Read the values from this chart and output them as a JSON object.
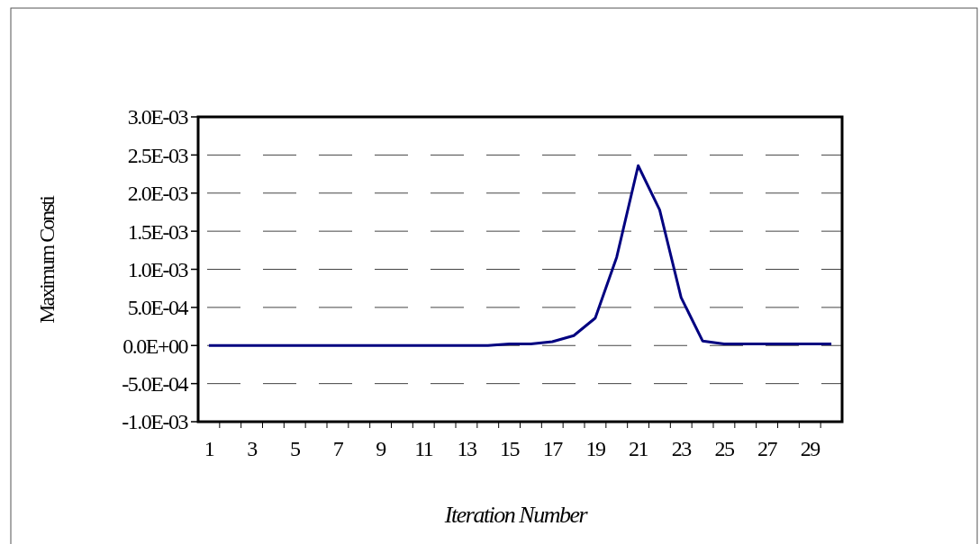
{
  "chart_data": {
    "type": "line",
    "xlabel": "Iteration Number",
    "ylabel": "Maximum Consti",
    "x": [
      1,
      2,
      3,
      4,
      5,
      6,
      7,
      8,
      9,
      10,
      11,
      12,
      13,
      14,
      15,
      16,
      17,
      18,
      19,
      20,
      21,
      22,
      23,
      24,
      25,
      26,
      27,
      28,
      29,
      30
    ],
    "xlim": [
      0.5,
      30.5
    ],
    "xticks": [
      1,
      3,
      5,
      7,
      9,
      11,
      13,
      15,
      17,
      19,
      21,
      23,
      25,
      27,
      29,
      {
        "value": 1.5,
        "label": null
      },
      {
        "value": 2.5,
        "label": null
      },
      {
        "value": 3.5,
        "label": null
      },
      {
        "value": 4.5,
        "label": null
      },
      {
        "value": 5.5,
        "label": null
      },
      {
        "value": 6.5,
        "label": null
      },
      {
        "value": 7.5,
        "label": null
      },
      {
        "value": 8.5,
        "label": null
      },
      {
        "value": 9.5,
        "label": null
      },
      {
        "value": 10.5,
        "label": null
      },
      {
        "value": 11.5,
        "label": null
      },
      {
        "value": 12.5,
        "label": null
      },
      {
        "value": 13.5,
        "label": null
      },
      {
        "value": 14.5,
        "label": null
      },
      {
        "value": 15.5,
        "label": null
      },
      {
        "value": 16.5,
        "label": null
      },
      {
        "value": 17.5,
        "label": null
      },
      {
        "value": 18.5,
        "label": null
      },
      {
        "value": 19.5,
        "label": null
      },
      {
        "value": 20.5,
        "label": null
      },
      {
        "value": 21.5,
        "label": null
      },
      {
        "value": 22.5,
        "label": null
      },
      {
        "value": 23.5,
        "label": null
      },
      {
        "value": 24.5,
        "label": null
      },
      {
        "value": 25.5,
        "label": null
      },
      {
        "value": 26.5,
        "label": null
      },
      {
        "value": 27.5,
        "label": null
      },
      {
        "value": 28.5,
        "label": null
      },
      {
        "value": 29.5,
        "label": null
      }
    ],
    "series": [
      {
        "color": "#000080",
        "values": [
          0,
          0,
          0,
          0,
          0,
          0,
          0,
          0,
          0,
          0,
          0,
          0,
          0,
          0,
          2e-05,
          2e-05,
          5e-05,
          0.00013,
          0.00036,
          0.00116,
          0.00236,
          0.00178,
          0.00063,
          6e-05,
          2e-05,
          2e-05,
          2e-05,
          2e-05,
          2e-05,
          2e-05
        ]
      }
    ],
    "ylim": [
      -0.001,
      0.003
    ],
    "yticks": [
      {
        "value": -0.001,
        "label": "-1.0E-03"
      },
      {
        "value": -0.0005,
        "label": "-5.0E-04"
      },
      {
        "value": 0,
        "label": "0.0E+00"
      },
      {
        "value": 0.0005,
        "label": "5.0E-04"
      },
      {
        "value": 0.001,
        "label": "1.0E-03"
      },
      {
        "value": 0.0015,
        "label": "1.5E-03"
      },
      {
        "value": 0.002,
        "label": "2.0E-03"
      },
      {
        "value": 0.0025,
        "label": "2.5E-03"
      },
      {
        "value": 0.003,
        "label": "3.0E-03"
      }
    ],
    "grid": "y",
    "marker": "none",
    "line_style": "solid"
  }
}
